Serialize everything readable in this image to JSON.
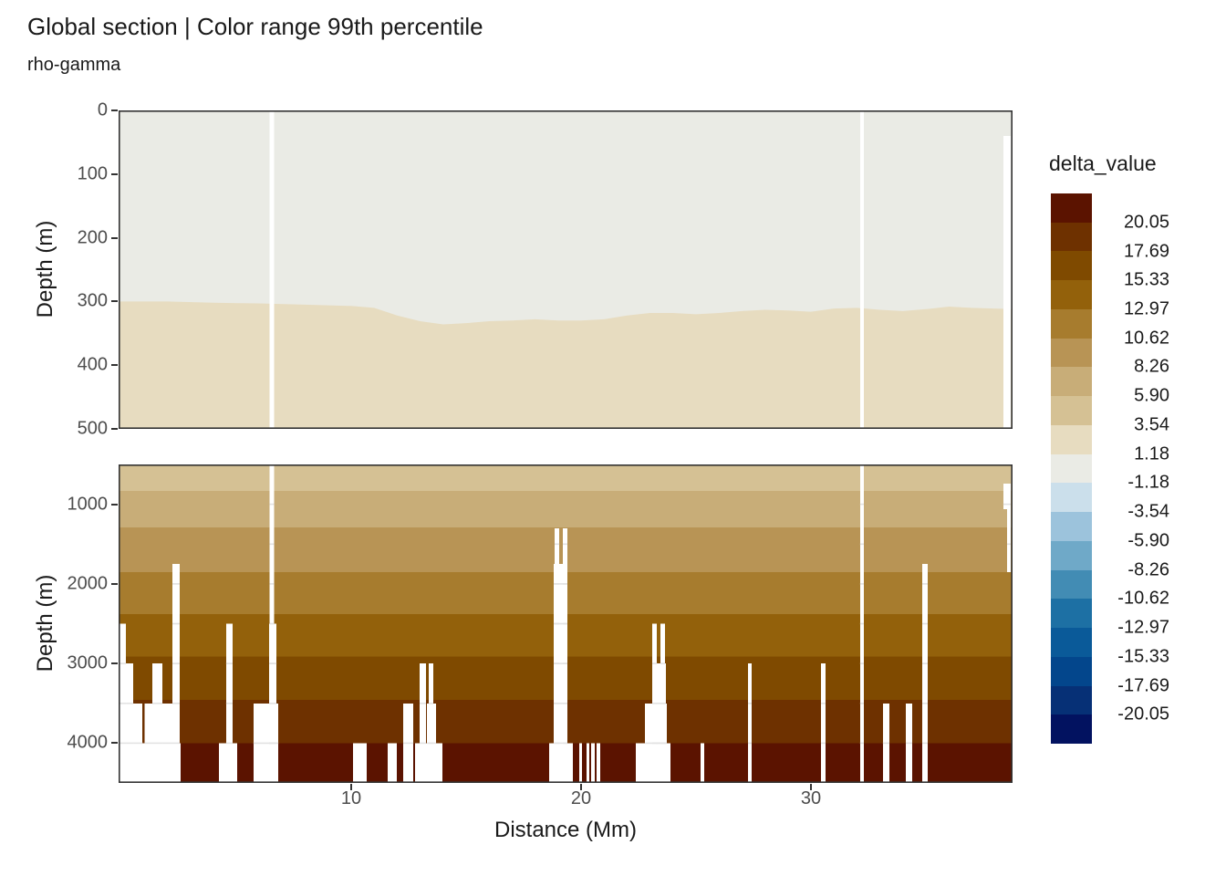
{
  "header": {
    "title": "Global section | Color range 99th percentile",
    "subtitle": "rho-gamma"
  },
  "axes": {
    "x_label": "Distance (Mm)",
    "y_label_upper": "Depth (m)",
    "y_label_lower": "Depth (m)"
  },
  "chart_data": {
    "type": "heatmap",
    "title": "Global section | Color range 99th percentile",
    "subtitle": "rho-gamma",
    "xlabel": "Distance (Mm)",
    "ylabel": "Depth (m)",
    "variable": "delta_value",
    "x": {
      "min": -0.12,
      "max": 38.77,
      "ticks": [
        10,
        20,
        30
      ]
    },
    "gridline_color": "#e2e2e2",
    "gridline_interval_m": 500,
    "panel_border_color": "#333333",
    "panels": [
      {
        "id": "upper",
        "depth_min": 0,
        "depth_max": 500,
        "yticks": [
          0,
          100,
          200,
          300,
          400,
          500
        ],
        "fill_above_contour": "#eaebe5",
        "fill_below_contour": "#e7dcc0",
        "contour_level": 1.18,
        "contour_depth_profile": [
          [
            -0.12,
            300
          ],
          [
            2,
            300
          ],
          [
            4,
            302
          ],
          [
            6,
            303
          ],
          [
            8,
            305
          ],
          [
            10,
            307
          ],
          [
            11,
            310
          ],
          [
            12,
            322
          ],
          [
            13,
            331
          ],
          [
            14,
            336
          ],
          [
            15,
            334
          ],
          [
            16,
            331
          ],
          [
            17,
            330
          ],
          [
            18,
            328
          ],
          [
            19,
            330
          ],
          [
            20,
            330
          ],
          [
            21,
            328
          ],
          [
            22,
            322
          ],
          [
            23,
            318
          ],
          [
            24,
            318
          ],
          [
            25,
            320
          ],
          [
            26,
            318
          ],
          [
            27,
            315
          ],
          [
            28,
            313
          ],
          [
            29,
            314
          ],
          [
            30,
            316
          ],
          [
            31,
            311
          ],
          [
            32,
            310
          ],
          [
            33,
            313
          ],
          [
            34,
            315
          ],
          [
            35,
            312
          ],
          [
            36,
            308
          ],
          [
            37,
            310
          ],
          [
            38.77,
            312
          ]
        ],
        "gaps": [
          [
            6.45,
            6.65,
            0,
            500
          ],
          [
            32.14,
            32.3,
            0,
            500
          ],
          [
            38.37,
            38.69,
            40,
            500
          ]
        ]
      },
      {
        "id": "lower",
        "depth_min": 500,
        "depth_max": 4500,
        "yticks": [
          1000,
          2000,
          3000,
          4000
        ],
        "bands": [
          {
            "top": 500,
            "bottom": 830,
            "color": "#d5c194",
            "delta_range": [
              3.54,
              5.9
            ]
          },
          {
            "top": 830,
            "bottom": 1290,
            "color": "#c8ad78",
            "delta_range": [
              5.9,
              8.26
            ]
          },
          {
            "top": 1290,
            "bottom": 1850,
            "color": "#b89455",
            "delta_range": [
              8.26,
              10.62
            ]
          },
          {
            "top": 1850,
            "bottom": 2380,
            "color": "#a77c2e",
            "delta_range": [
              10.62,
              12.97
            ]
          },
          {
            "top": 2380,
            "bottom": 2915,
            "color": "#93610b",
            "delta_range": [
              12.97,
              15.33
            ]
          },
          {
            "top": 2915,
            "bottom": 3455,
            "color": "#7f4a00",
            "delta_range": [
              15.33,
              17.69
            ]
          },
          {
            "top": 3455,
            "bottom": 4000,
            "color": "#6e3100",
            "delta_range": [
              17.69,
              20.05
            ]
          },
          {
            "top": 4000,
            "bottom": 4500,
            "color": "#5b1300",
            "delta_range": [
              20.05,
              null
            ]
          }
        ],
        "gaps": [
          [
            -0.12,
            0.2,
            2500,
            4500
          ],
          [
            0.2,
            0.52,
            3000,
            4500
          ],
          [
            0.52,
            0.92,
            3500,
            4500
          ],
          [
            1.02,
            1.35,
            3500,
            4500
          ],
          [
            1.35,
            1.79,
            3000,
            4500
          ],
          [
            1.79,
            2.22,
            3500,
            4500
          ],
          [
            2.22,
            2.54,
            1750,
            4500
          ],
          [
            -0.12,
            2.58,
            4000,
            4500
          ],
          [
            4.25,
            5.04,
            4000,
            4500
          ],
          [
            4.56,
            4.84,
            2500,
            4500
          ],
          [
            5.75,
            6.83,
            3500,
            4500
          ],
          [
            6.43,
            6.75,
            2500,
            4500
          ],
          [
            6.45,
            6.65,
            500,
            4500
          ],
          [
            10.08,
            10.67,
            4000,
            4500
          ],
          [
            11.59,
            11.98,
            4000,
            4500
          ],
          [
            12.26,
            12.7,
            3500,
            4500
          ],
          [
            12.98,
            13.25,
            3000,
            4500
          ],
          [
            13.37,
            13.57,
            3000,
            4500
          ],
          [
            13.3,
            13.69,
            3500,
            4500
          ],
          [
            12.78,
            13.97,
            4000,
            4500
          ],
          [
            18.85,
            19.05,
            1300,
            4500
          ],
          [
            19.21,
            19.4,
            1300,
            4500
          ],
          [
            18.81,
            19.4,
            1750,
            4500
          ],
          [
            18.61,
            19.64,
            4000,
            4500
          ],
          [
            19.92,
            20.04,
            4000,
            4500
          ],
          [
            20.24,
            20.36,
            4000,
            4500
          ],
          [
            20.44,
            20.6,
            4000,
            4500
          ],
          [
            20.67,
            20.83,
            4000,
            4500
          ],
          [
            23.1,
            23.3,
            2500,
            4500
          ],
          [
            23.45,
            23.65,
            2500,
            4500
          ],
          [
            23.25,
            23.69,
            3000,
            4500
          ],
          [
            22.78,
            23.73,
            3500,
            4500
          ],
          [
            22.38,
            23.89,
            4000,
            4500
          ],
          [
            25.2,
            25.36,
            4000,
            4500
          ],
          [
            27.26,
            27.42,
            3000,
            4500
          ],
          [
            30.44,
            30.63,
            3000,
            4500
          ],
          [
            32.14,
            32.3,
            500,
            4500
          ],
          [
            33.13,
            33.41,
            3500,
            4500
          ],
          [
            34.13,
            34.4,
            3500,
            4500
          ],
          [
            34.84,
            35.08,
            1750,
            4500
          ],
          [
            38.37,
            38.69,
            740,
            1060
          ],
          [
            38.53,
            38.69,
            1060,
            1850
          ]
        ]
      }
    ],
    "legend": {
      "title": "delta_value",
      "levels": [
        20.05,
        17.69,
        15.33,
        12.97,
        10.62,
        8.26,
        5.9,
        3.54,
        1.18,
        -1.18,
        -3.54,
        -5.9,
        -8.26,
        -10.62,
        -12.97,
        -15.33,
        -17.69,
        -20.05
      ],
      "colors": [
        "#5b1300",
        "#6e3100",
        "#7f4a00",
        "#93610b",
        "#a77c2e",
        "#b89455",
        "#c8ad78",
        "#d5c194",
        "#e7dcc0",
        "#eaebe5",
        "#cbdfeb",
        "#9cc3dc",
        "#6fa9c8",
        "#428cb4",
        "#1d70a4",
        "#0a5a99",
        "#03468c",
        "#063076",
        "#021260"
      ]
    }
  }
}
